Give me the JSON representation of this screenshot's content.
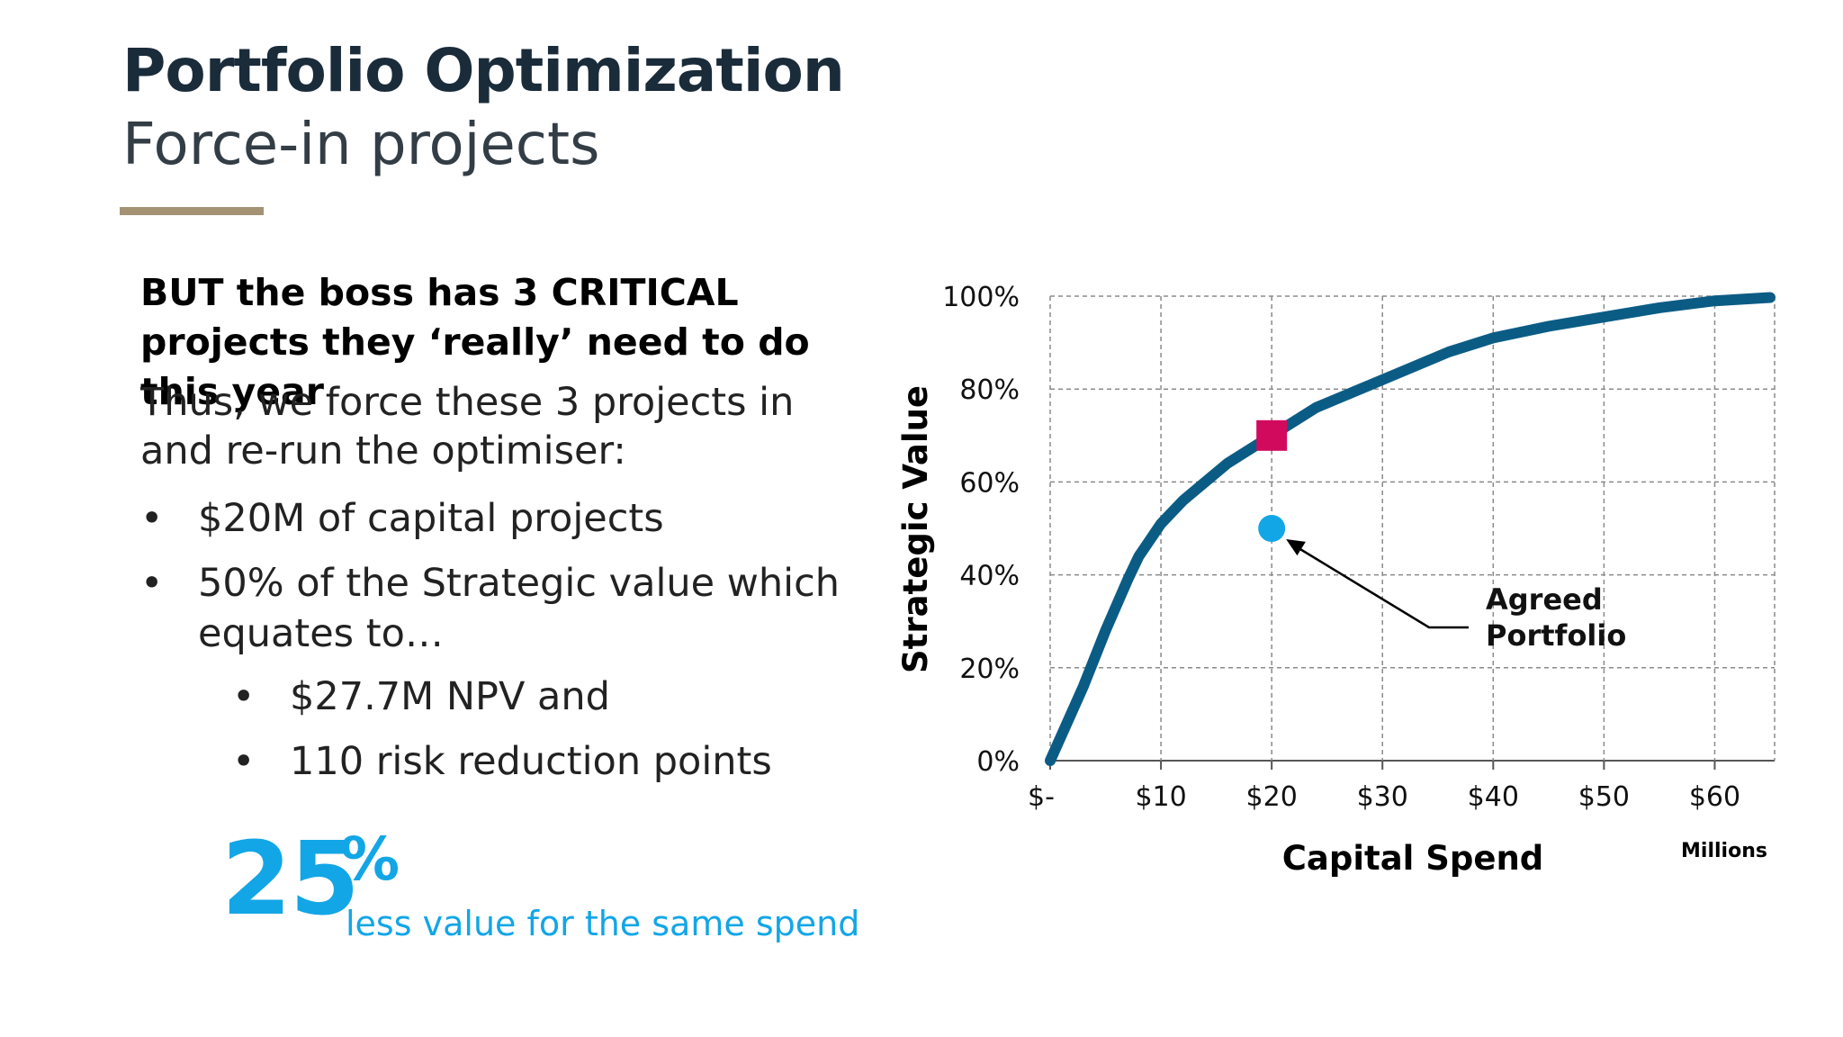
{
  "slide": {
    "title": "Portfolio Optimization",
    "subtitle": "Force-in projects",
    "accent_color": "#a39274"
  },
  "content": {
    "heading": "BUT the boss has 3 CRITICAL projects they ‘really’ need to do this year",
    "intro": "Thus, we force these 3 projects in and re-run the optimiser:",
    "bullets": [
      {
        "text": "$20M of capital projects"
      },
      {
        "text": "50% of the Strategic value which",
        "cont": "equates to…"
      }
    ],
    "sub_bullets": [
      {
        "text": "$27.7M NPV and"
      },
      {
        "text": "110 risk reduction points"
      }
    ],
    "bullet_char": "•"
  },
  "callout": {
    "number": "25",
    "percent": "%",
    "caption": "less value for the same spend",
    "color": "#12a6e6"
  },
  "chart_data": {
    "type": "line",
    "xlabel": "Capital Spend",
    "ylabel": "Strategic Value",
    "x_units": "Millions",
    "xlim": [
      0,
      65
    ],
    "ylim": [
      0,
      100
    ],
    "grid": true,
    "x_ticks": [
      0,
      10,
      20,
      30,
      40,
      50,
      60
    ],
    "x_tick_labels": [
      "$-",
      "$10",
      "$20",
      "$30",
      "$40",
      "$50",
      "$60"
    ],
    "y_ticks": [
      0,
      20,
      40,
      60,
      80,
      100
    ],
    "y_tick_labels": [
      "0%",
      "20%",
      "40%",
      "60%",
      "80%",
      "100%"
    ],
    "series": [
      {
        "color": "#0b5c85",
        "x": [
          0,
          3,
          5,
          7,
          8,
          10,
          12,
          14,
          16,
          18,
          20,
          22,
          24,
          26,
          28,
          30,
          33,
          36,
          40,
          45,
          50,
          55,
          60,
          65
        ],
        "y": [
          0,
          16,
          28,
          39,
          44,
          51,
          56,
          60,
          64,
          67,
          70,
          73,
          76,
          78,
          80,
          82,
          85,
          88,
          91,
          93.5,
          95.5,
          97.5,
          99,
          99.7
        ]
      }
    ],
    "markers": [
      {
        "shape": "square",
        "x": 20,
        "y": 70,
        "color": "#d10a5e"
      },
      {
        "shape": "circle",
        "x": 20,
        "y": 50,
        "color": "#12a6e6"
      }
    ],
    "annotations": [
      {
        "text": [
          "Agreed",
          "Portfolio"
        ],
        "points_to": {
          "x": 20,
          "y": 50
        }
      }
    ]
  }
}
